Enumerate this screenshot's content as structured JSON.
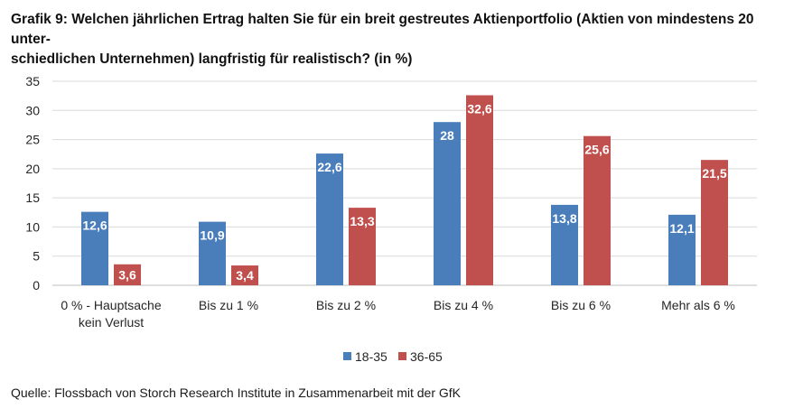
{
  "title": "Grafik 9: Welchen jährlichen Ertrag halten Sie für ein breit gestreutes Aktienportfolio (Aktien von mindestens 20 unterschiedlichen Unternehmen) langfristig für realistisch? (in %)",
  "title_line1": "Grafik 9: Welchen jährlichen Ertrag halten Sie für ein breit gestreutes Aktienportfolio (Aktien von mindestens 20 unter-",
  "title_line2": "schiedlichen Unternehmen) langfristig für realistisch? (in %)",
  "source": "Quelle: Flossbach von Storch Research Institute in Zusammenarbeit mit der GfK",
  "chart_data": {
    "type": "bar",
    "categories": [
      [
        "0 % - Hauptsache",
        "kein Verlust"
      ],
      [
        "Bis zu 1 %"
      ],
      [
        "Bis zu 2 %"
      ],
      [
        "Bis zu 4 %"
      ],
      [
        "Bis zu 6 %"
      ],
      [
        "Mehr als 6 %"
      ]
    ],
    "series": [
      {
        "name": "18-35",
        "color": "#4a7ebb",
        "values": [
          12.6,
          10.9,
          22.6,
          28,
          13.8,
          12.1
        ],
        "labels": [
          "12,6",
          "10,9",
          "22,6",
          "28",
          "13,8",
          "12,1"
        ]
      },
      {
        "name": "36-65",
        "color": "#c0504d",
        "values": [
          3.6,
          3.4,
          13.3,
          32.6,
          25.6,
          21.5
        ],
        "labels": [
          "3,6",
          "3,4",
          "13,3",
          "32,6",
          "25,6",
          "21,5"
        ]
      }
    ],
    "yticks": [
      0,
      5,
      10,
      15,
      20,
      25,
      30,
      35
    ],
    "ylim": [
      0,
      35
    ],
    "grid": true,
    "legend_position": "bottom"
  }
}
